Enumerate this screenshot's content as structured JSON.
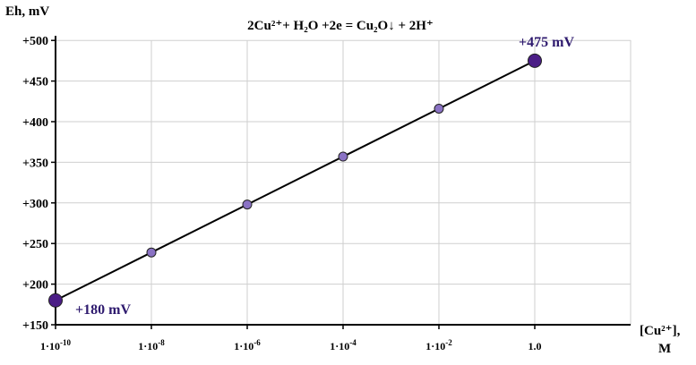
{
  "chart_data": {
    "type": "line",
    "title": "2Cu²⁺+ H₂O +2e = Cu₂O↓ + 2H⁺",
    "ylabel": "Eh, mV",
    "xlabel_line1": "[Cu²⁺],",
    "xlabel_line2": "M",
    "x_tick_labels": [
      {
        "mantissa": "1·10",
        "exponent": "-10"
      },
      {
        "mantissa": "1·10",
        "exponent": "-8"
      },
      {
        "mantissa": "1·10",
        "exponent": "-6"
      },
      {
        "mantissa": "1·10",
        "exponent": "-4"
      },
      {
        "mantissa": "1·10",
        "exponent": "-2"
      },
      {
        "mantissa": "1.0",
        "exponent": ""
      }
    ],
    "x_scale": "log10",
    "x_log_ticks": [
      -10,
      -8,
      -6,
      -4,
      -2,
      0
    ],
    "x_log_max": 2,
    "y_ticks": [
      150,
      200,
      250,
      300,
      350,
      400,
      450,
      500
    ],
    "y_tick_labels": [
      "+150",
      "+200",
      "+250",
      "+300",
      "+350",
      "+400",
      "+450",
      "+500"
    ],
    "ylim": [
      150,
      510
    ],
    "grid": true,
    "series": [
      {
        "x_log": [
          -10,
          -8,
          -6,
          -4,
          -2,
          0
        ],
        "values": [
          180,
          239,
          298,
          357,
          416,
          475
        ]
      }
    ],
    "endpoint_labels": [
      "+180 mV",
      "+475 mV"
    ],
    "colors": {
      "line": "#000000",
      "point_small": "#8a72c4",
      "point_large": "#4b1d86",
      "annotation": "#2e1a6e",
      "grid": "#cfcfcf"
    }
  }
}
